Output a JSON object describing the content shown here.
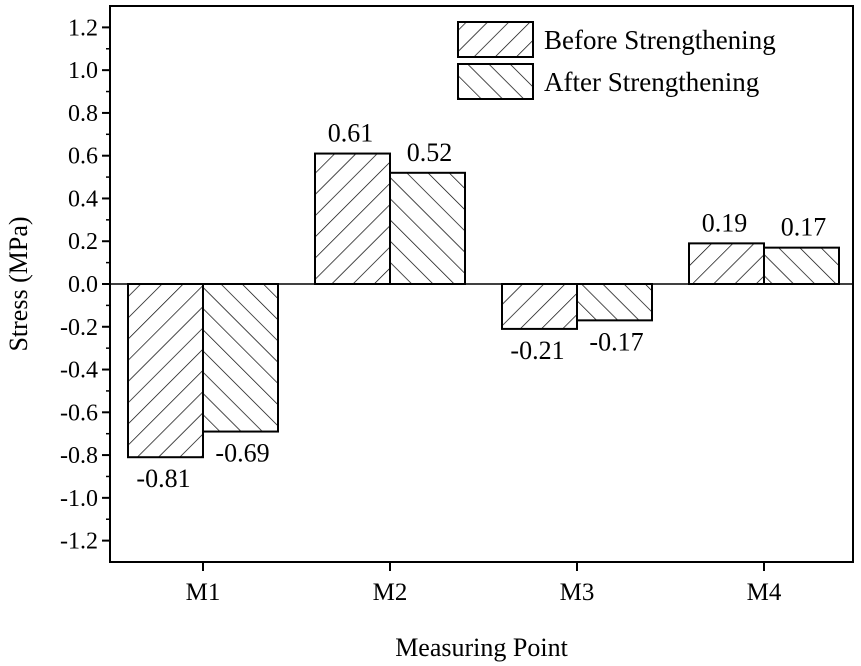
{
  "chart_data": {
    "type": "bar",
    "title": "",
    "xlabel": "Measuring Point",
    "ylabel": "Stress (MPa)",
    "categories": [
      "M1",
      "M2",
      "M3",
      "M4"
    ],
    "series": [
      {
        "name": "Before Strengthening",
        "values": [
          -0.81,
          0.61,
          -0.21,
          0.19
        ],
        "labels": [
          "-0.81",
          "0.61",
          "-0.21",
          "0.19"
        ],
        "pattern": "forward-hatch"
      },
      {
        "name": "After Strengthening",
        "values": [
          -0.69,
          0.52,
          -0.17,
          0.17
        ],
        "labels": [
          "-0.69",
          "0.52",
          "-0.17",
          "0.17"
        ],
        "pattern": "back-hatch"
      }
    ],
    "ylim": [
      -1.3,
      1.3
    ],
    "yticks": [
      -1.2,
      -1.0,
      -0.8,
      -0.6,
      -0.4,
      -0.2,
      0.0,
      0.2,
      0.4,
      0.6,
      0.8,
      1.0,
      1.2
    ],
    "ytick_labels": [
      "-1.2",
      "-1.0",
      "-0.8",
      "-0.6",
      "-0.4",
      "-0.2",
      "0.0",
      "0.2",
      "0.4",
      "0.6",
      "0.8",
      "1.0",
      "1.2"
    ],
    "grid": false,
    "zero_line": true,
    "legend_position": "top-right",
    "colors": {
      "fill": "#ffffff",
      "stroke": "#000000"
    }
  }
}
